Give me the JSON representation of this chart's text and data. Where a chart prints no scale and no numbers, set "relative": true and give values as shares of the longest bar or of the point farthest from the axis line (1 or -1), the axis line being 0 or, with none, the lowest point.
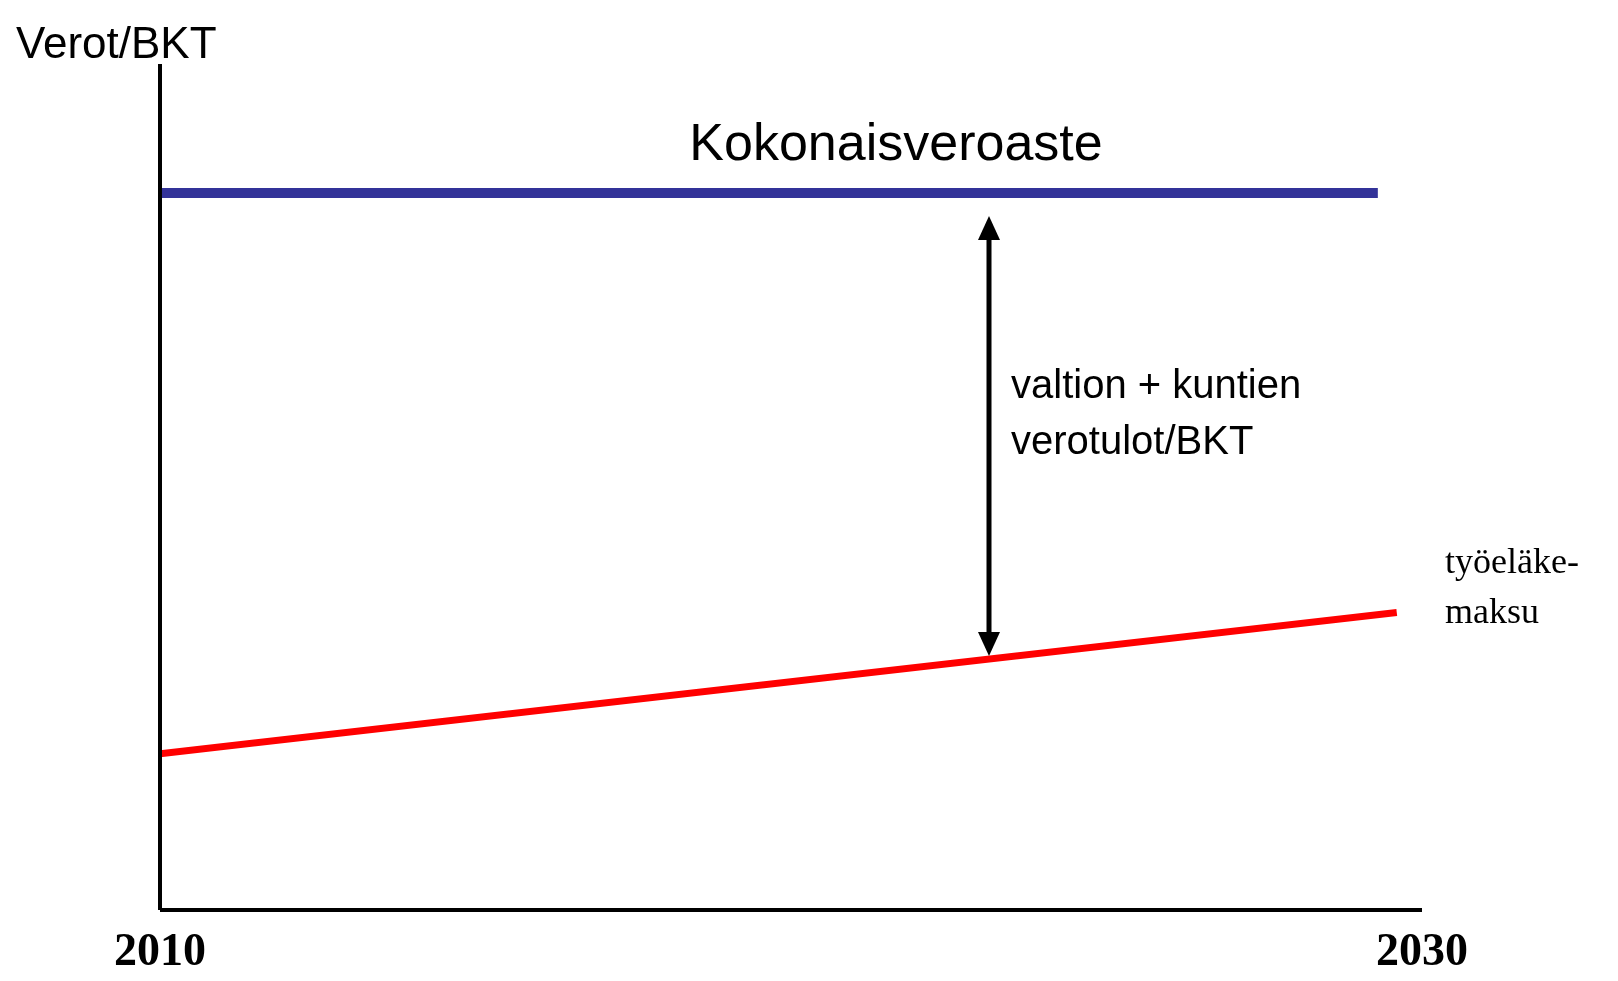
{
  "chart_data": {
    "type": "line",
    "relative": true,
    "ylabel": "Verot/BKT",
    "xlim": [
      2010,
      2030
    ],
    "xticks": [
      2010,
      2030
    ],
    "tick_labels": "x",
    "marker": "none",
    "line_style": "solid",
    "series": [
      {
        "name": "Kokonaisveroaste",
        "color": "#333399",
        "x": [
          2010,
          2029.3
        ],
        "values": [
          1,
          1
        ]
      },
      {
        "name": "työeläke-\nmaksu",
        "color": "#ff0000",
        "x": [
          2010,
          2029.6
        ],
        "values": [
          0.218,
          0.415
        ]
      }
    ],
    "annotations": [
      "valtion + kuntien\nverotulot/BKT"
    ]
  }
}
